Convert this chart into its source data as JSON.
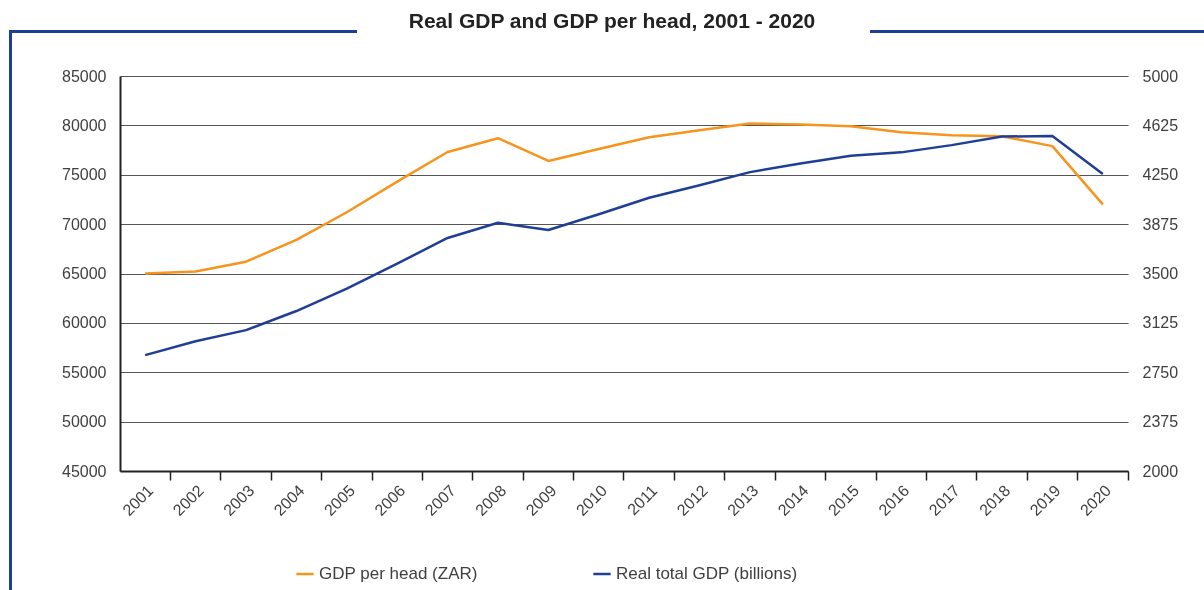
{
  "chart_data": {
    "type": "line",
    "title": "Real GDP and GDP per head, 2001 - 2020",
    "categories": [
      "2001",
      "2002",
      "2003",
      "2004",
      "2005",
      "2006",
      "2007",
      "2008",
      "2009",
      "2010",
      "2011",
      "2012",
      "2013",
      "2014",
      "2015",
      "2016",
      "2017",
      "2018",
      "2019",
      "2020"
    ],
    "series": [
      {
        "name": "GDP per head (ZAR)",
        "color": "#f7941d",
        "axis": "y",
        "values": [
          65000,
          65200,
          66200,
          68400,
          71200,
          74300,
          77300,
          78700,
          76400,
          77600,
          78800,
          79500,
          80200,
          80100,
          79900,
          79300,
          79000,
          78900,
          77900,
          72000
        ]
      },
      {
        "name": "Real total GDP (billions)",
        "color": "#1f3f97",
        "axis": "y2",
        "values": [
          2880,
          2985,
          3070,
          3215,
          3385,
          3575,
          3770,
          3885,
          3830,
          3950,
          4075,
          4170,
          4270,
          4335,
          4395,
          4420,
          4475,
          4540,
          4545,
          4255
        ]
      }
    ],
    "ylim": [
      45000,
      85000
    ],
    "yticks": [
      45000,
      50000,
      55000,
      60000,
      65000,
      70000,
      75000,
      80000,
      85000
    ],
    "y2lim": [
      2000,
      5000
    ],
    "y2ticks": [
      2000,
      2375,
      2750,
      3125,
      3500,
      3875,
      4250,
      4625,
      5000
    ],
    "grid": "y",
    "legend": "bottom"
  }
}
